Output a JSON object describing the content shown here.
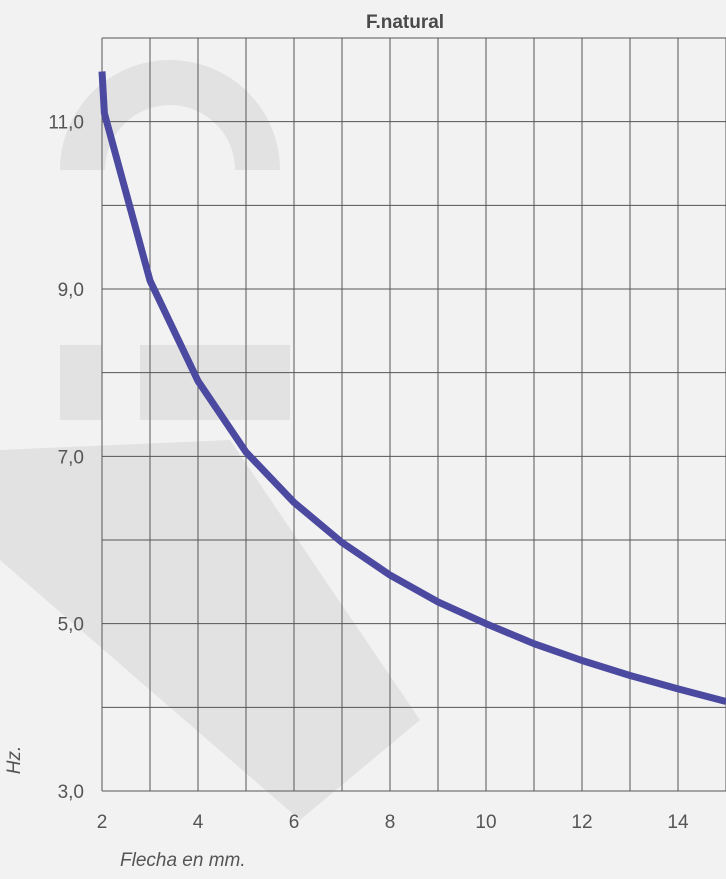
{
  "chart_data": {
    "type": "line",
    "title": "F.natural",
    "xlabel": "Flecha en mm.",
    "ylabel": "Hz.",
    "xlim": [
      2,
      15
    ],
    "ylim": [
      3,
      12
    ],
    "x_tick_labels": [
      "2",
      "4",
      "6",
      "8",
      "10",
      "12",
      "14"
    ],
    "y_tick_labels": [
      "3,0",
      "5,0",
      "7,0",
      "9,0",
      "11,0"
    ],
    "grid": true,
    "series": [
      {
        "color": "#4b4aa0",
        "points": [
          {
            "x": 2,
            "y": 11.6
          },
          {
            "x": 2.05,
            "y": 11.1
          },
          {
            "x": 3,
            "y": 9.1
          },
          {
            "x": 4,
            "y": 7.9
          },
          {
            "x": 5,
            "y": 7.05
          },
          {
            "x": 6,
            "y": 6.45
          },
          {
            "x": 7,
            "y": 5.97
          },
          {
            "x": 8,
            "y": 5.58
          },
          {
            "x": 9,
            "y": 5.26
          },
          {
            "x": 10,
            "y": 5.0
          },
          {
            "x": 11,
            "y": 4.76
          },
          {
            "x": 12,
            "y": 4.56
          },
          {
            "x": 13,
            "y": 4.38
          },
          {
            "x": 14,
            "y": 4.22
          },
          {
            "x": 15,
            "y": 4.07
          }
        ]
      }
    ]
  }
}
